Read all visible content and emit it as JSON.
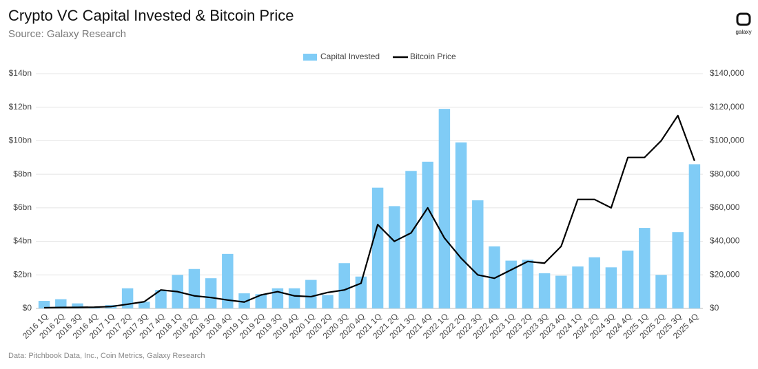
{
  "chart_data": {
    "type": "bar_line",
    "title": "Crypto VC Capital Invested & Bitcoin Price",
    "subtitle": "Source: Galaxy Research",
    "logo": "galaxy",
    "footnote": "Data: Pitchbook Data, Inc., Coin Metrics, Galaxy Research",
    "categories": [
      "2016 1Q",
      "2016 2Q",
      "2016 3Q",
      "2016 4Q",
      "2017 1Q",
      "2017 2Q",
      "2017 3Q",
      "2017 4Q",
      "2018 1Q",
      "2018 2Q",
      "2018 3Q",
      "2018 4Q",
      "2019 1Q",
      "2019 2Q",
      "2019 3Q",
      "2019 4Q",
      "2020 1Q",
      "2020 2Q",
      "2020 3Q",
      "2020 4Q",
      "2021 1Q",
      "2021 2Q",
      "2021 3Q",
      "2021 4Q",
      "2022 1Q",
      "2022 2Q",
      "2022 3Q",
      "2022 4Q",
      "2023 1Q",
      "2023 2Q",
      "2023 3Q",
      "2023 4Q",
      "2024 1Q",
      "2024 2Q",
      "2024 3Q",
      "2024 4Q",
      "2025 1Q",
      "2025 2Q",
      "2025 3Q",
      "2025 4Q"
    ],
    "series": [
      {
        "name": "Capital Invested",
        "type": "bar",
        "color": "#80ccf6",
        "values": [
          0.45,
          0.55,
          0.3,
          0.1,
          0.2,
          1.2,
          0.4,
          1.1,
          2.0,
          2.35,
          1.8,
          3.25,
          0.9,
          0.85,
          1.2,
          1.2,
          1.7,
          0.8,
          2.7,
          1.9,
          7.2,
          6.1,
          8.2,
          8.75,
          11.9,
          9.9,
          6.45,
          3.7,
          2.85,
          2.9,
          2.1,
          1.95,
          2.5,
          3.05,
          2.45,
          3.45,
          4.8,
          2.0,
          4.55,
          8.6
        ]
      },
      {
        "name": "Bitcoin Price",
        "type": "line",
        "color": "#000000",
        "axis": "y2",
        "values": [
          420,
          550,
          620,
          750,
          1100,
          2500,
          4000,
          11000,
          10000,
          7500,
          6500,
          5000,
          3800,
          8000,
          10000,
          7500,
          7000,
          9500,
          11000,
          15000,
          50000,
          40000,
          45000,
          60000,
          42000,
          30000,
          20000,
          18000,
          23000,
          28000,
          27000,
          37000,
          65000,
          65000,
          60000,
          90000,
          90000,
          100000,
          115000,
          88000
        ]
      }
    ],
    "ylim": [
      0,
      14
    ],
    "yticks": [
      {
        "value": 0,
        "label": "$0"
      },
      {
        "value": 2,
        "label": "$2bn"
      },
      {
        "value": 4,
        "label": "$4bn"
      },
      {
        "value": 6,
        "label": "$6bn"
      },
      {
        "value": 8,
        "label": "$8bn"
      },
      {
        "value": 10,
        "label": "$10bn"
      },
      {
        "value": 12,
        "label": "$12bn"
      },
      {
        "value": 14,
        "label": "$14bn"
      }
    ],
    "y2lim": [
      0,
      140000
    ],
    "y2ticks": [
      {
        "value": 0,
        "label": "$0"
      },
      {
        "value": 20000,
        "label": "$20,000"
      },
      {
        "value": 40000,
        "label": "$40,000"
      },
      {
        "value": 60000,
        "label": "$60,000"
      },
      {
        "value": 80000,
        "label": "$80,000"
      },
      {
        "value": 100000,
        "label": "$100,000"
      },
      {
        "value": 120000,
        "label": "$120,000"
      },
      {
        "value": 140000,
        "label": "$140,000"
      }
    ],
    "grid": true,
    "legend": "top"
  }
}
